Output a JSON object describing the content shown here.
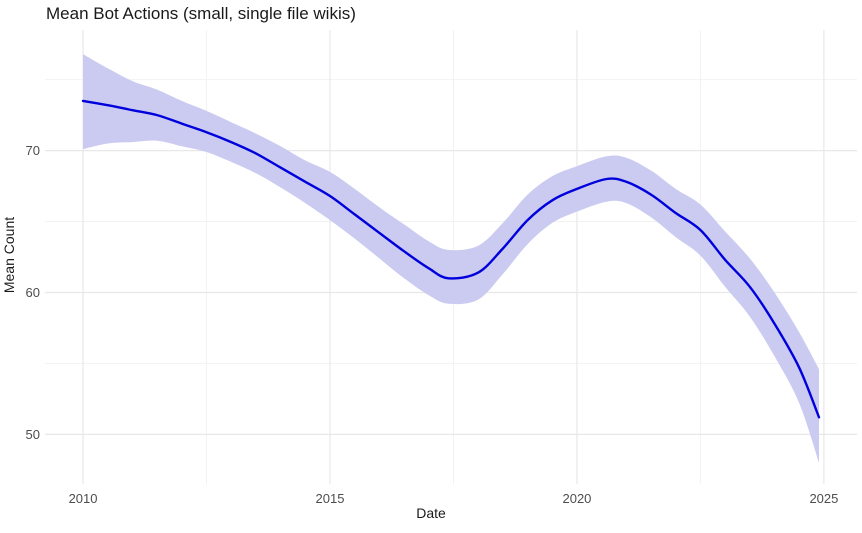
{
  "chart_data": {
    "type": "line",
    "title": "Mean Bot Actions (small, single file wikis)",
    "xlabel": "Date",
    "ylabel": "Mean Count",
    "legend": false,
    "grid": true,
    "xlim": [
      2009.23,
      2025.67
    ],
    "ylim": [
      46.5,
      78.5
    ],
    "x_major_ticks": [
      2010,
      2015,
      2020,
      2025
    ],
    "x_tick_labels": [
      "2010",
      "2015",
      "2020",
      "2025"
    ],
    "x_minor_ticks": [
      2012.5,
      2017.5,
      2022.5
    ],
    "y_major_ticks": [
      50,
      60,
      70
    ],
    "y_tick_labels": [
      "50",
      "60",
      "70"
    ],
    "y_minor_ticks": [
      55,
      65,
      75
    ],
    "x": [
      2010,
      2010.5,
      2011,
      2011.5,
      2012,
      2012.5,
      2013,
      2013.5,
      2014,
      2014.5,
      2015,
      2015.5,
      2016,
      2016.5,
      2017,
      2017.4,
      2018,
      2018.5,
      2019,
      2019.5,
      2020,
      2020.6,
      2021,
      2021.5,
      2022,
      2022.5,
      2023,
      2023.5,
      2024,
      2024.5,
      2024.9
    ],
    "series": [
      {
        "name": "mean_count_smooth",
        "values": [
          73.5,
          73.2,
          72.85,
          72.5,
          71.9,
          71.3,
          70.6,
          69.8,
          68.8,
          67.8,
          66.8,
          65.5,
          64.2,
          62.9,
          61.7,
          61.0,
          61.4,
          63.1,
          65.1,
          66.5,
          67.3,
          68.0,
          67.8,
          66.9,
          65.6,
          64.4,
          62.3,
          60.4,
          57.8,
          54.7,
          51.2
        ]
      },
      {
        "name": "ci_lower",
        "values": [
          70.1,
          70.5,
          70.6,
          70.7,
          70.3,
          69.9,
          69.2,
          68.4,
          67.4,
          66.3,
          65.1,
          63.8,
          62.4,
          61.0,
          59.8,
          59.2,
          59.5,
          61.3,
          63.4,
          64.9,
          65.7,
          66.4,
          66.3,
          65.3,
          63.9,
          62.6,
          60.4,
          58.3,
          55.5,
          52.2,
          48.0
        ]
      },
      {
        "name": "ci_upper",
        "values": [
          76.8,
          75.8,
          74.9,
          74.3,
          73.5,
          72.8,
          72.0,
          71.2,
          70.3,
          69.3,
          68.5,
          67.3,
          66.0,
          64.8,
          63.6,
          63.0,
          63.3,
          64.9,
          66.9,
          68.2,
          68.9,
          69.6,
          69.5,
          68.6,
          67.3,
          66.2,
          64.3,
          62.4,
          60.0,
          57.2,
          54.6
        ]
      }
    ],
    "colors": {
      "line": "#0000dc",
      "ribbon": "#cbcbf2",
      "grid_major": "#e8e8e8",
      "grid_minor": "#f2f2f2",
      "tick_label": "#4d4d4d",
      "text": "#1a1a1a",
      "background": "#ffffff"
    }
  }
}
